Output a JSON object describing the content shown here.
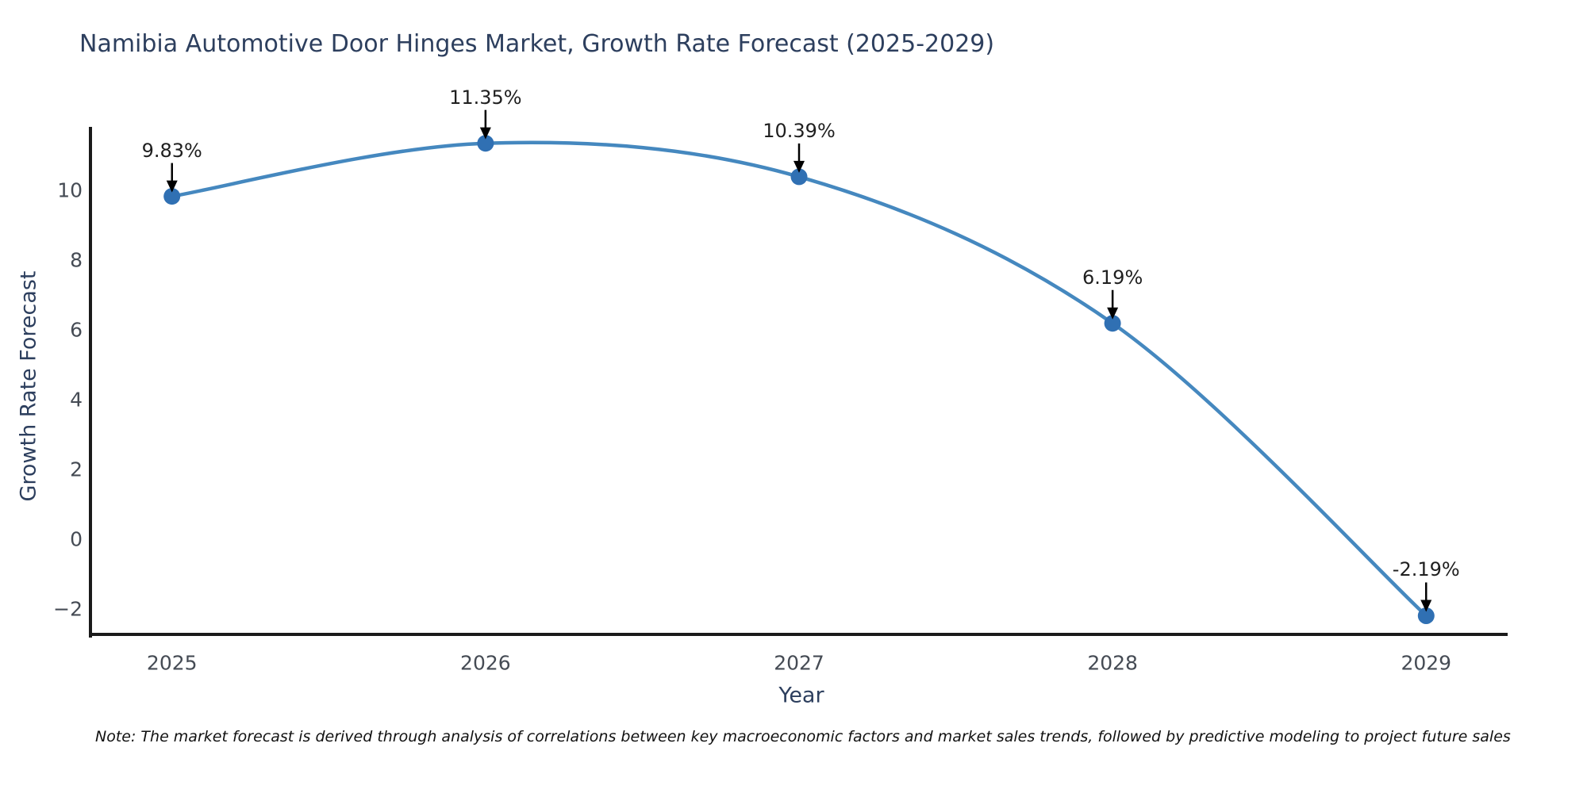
{
  "title": "Namibia Automotive Door Hinges Market, Growth Rate Forecast (2025-2029)",
  "note": "Note: The market forecast is derived through analysis of correlations between key macroeconomic factors and market sales trends, followed by predictive modeling to project future sales",
  "chart_data": {
    "type": "line",
    "title": "Namibia Automotive Door Hinges Market, Growth Rate Forecast (2025-2029)",
    "xlabel": "Year",
    "ylabel": "Growth Rate Forecast",
    "x": [
      2025,
      2026,
      2027,
      2028,
      2029
    ],
    "values": [
      9.83,
      11.35,
      10.39,
      6.19,
      -2.19
    ],
    "point_labels": [
      "9.83%",
      "11.35%",
      "10.39%",
      "6.19%",
      "-2.19%"
    ],
    "xticks": [
      2025,
      2026,
      2027,
      2028,
      2029
    ],
    "yticks": [
      -2,
      0,
      2,
      4,
      6,
      8,
      10
    ],
    "xlim": [
      2024.74,
      2029.26
    ],
    "ylim": [
      -2.77,
      11.82
    ],
    "line_shape": "spline",
    "grid": false,
    "legend": "none",
    "colors": {
      "line": "#4588bf",
      "marker": "#3070b3",
      "arrow": "#000000",
      "axis": "#1a1a1a",
      "title_text": "#2d3f5e",
      "tick_text": "#454b54",
      "annotation_text": "#1f1f1f",
      "note_text": "#111111",
      "background": "#ffffff"
    }
  }
}
